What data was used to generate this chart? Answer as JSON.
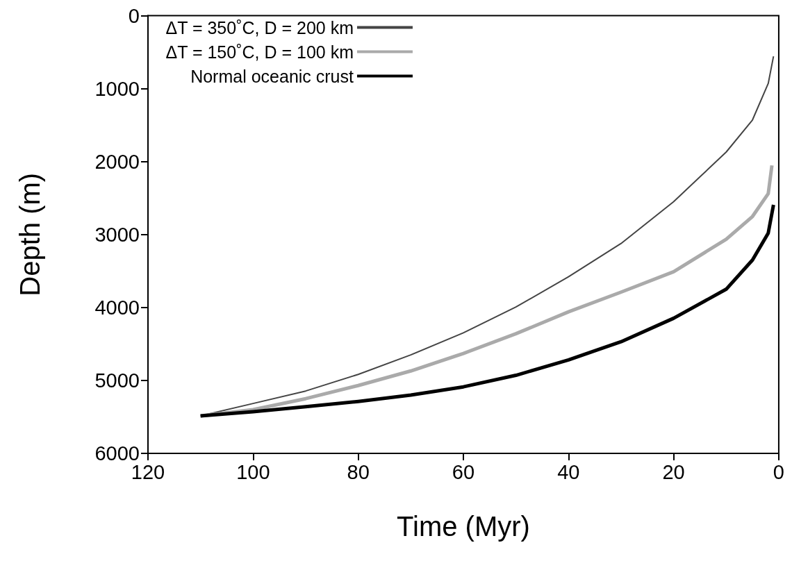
{
  "chart_data": {
    "type": "line",
    "xlabel": "Time (Myr)",
    "ylabel": "Depth (m)",
    "xlim": [
      120,
      0
    ],
    "ylim": [
      6000,
      0
    ],
    "xticks": [
      120,
      100,
      80,
      60,
      40,
      20,
      0
    ],
    "yticks": [
      6000,
      5000,
      4000,
      3000,
      2000,
      1000,
      0
    ],
    "grid": false,
    "legend": "top left",
    "marker": "none",
    "line_style": "solid",
    "series": [
      {
        "name": "ΔT = 350˚C, D = 200 km",
        "color": "#444444",
        "x": [
          110,
          100,
          90,
          80,
          70,
          60,
          50,
          40,
          30,
          20,
          10,
          5,
          2,
          1
        ],
        "values": [
          5487,
          5316,
          5145,
          4917,
          4650,
          4348,
          3994,
          3580,
          3123,
          2550,
          1870,
          1430,
          930,
          558
        ]
      },
      {
        "name": "ΔT = 150˚C, D = 100 km",
        "color": "#aaaaaa",
        "x": [
          110,
          100,
          90,
          80,
          70,
          60,
          50,
          40,
          30,
          20,
          10,
          5,
          2,
          1.3
        ],
        "values": [
          5487,
          5400,
          5250,
          5070,
          4870,
          4630,
          4360,
          4060,
          3790,
          3510,
          3065,
          2753,
          2440,
          2053
        ]
      },
      {
        "name": "Normal oceanic crust",
        "color": "#000000",
        "x": [
          110,
          100,
          90,
          80,
          70,
          60,
          50,
          40,
          30,
          20,
          10,
          5,
          2,
          1
        ],
        "values": [
          5487,
          5430,
          5360,
          5288,
          5200,
          5088,
          4930,
          4718,
          4470,
          4148,
          3750,
          3350,
          2980,
          2593
        ]
      }
    ]
  }
}
